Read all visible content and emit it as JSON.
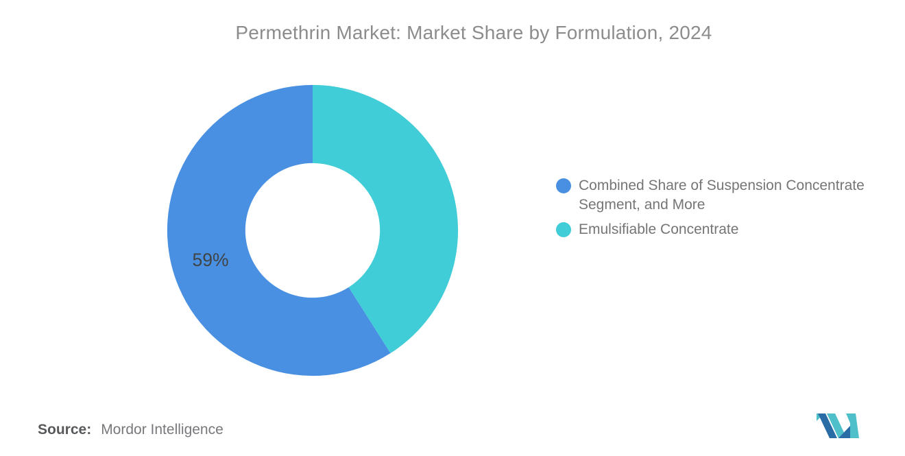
{
  "title": "Permethrin Market: Market Share by Formulation, 2024",
  "chart_data": {
    "type": "pie",
    "subtype": "donut",
    "title": "Permethrin Market: Market Share by Formulation, 2024",
    "unit": "%",
    "start_angle_deg": 0,
    "direction": "counterclockwise-from-top",
    "inner_radius_ratio": 0.465,
    "legend_position": "right",
    "slices": [
      {
        "label": "Combined Share of Suspension Concentrate Segment, and More",
        "value": 59,
        "color": "#4A90E2",
        "data_label": "59%"
      },
      {
        "label": "Emulsifiable Concentrate",
        "value": 41,
        "color": "#41CDD8",
        "data_label": ""
      }
    ]
  },
  "source": {
    "prefix": "Source:",
    "name": "Mordor Intelligence"
  },
  "logo": {
    "alt": "mordor-intelligence-logo",
    "teal": "#4FBFC9",
    "blue": "#2A6CA6"
  },
  "colors": {
    "title_text": "#8C8C8C",
    "legend_text": "#757575",
    "data_label_text": "#3F4446",
    "source_prefix_text": "#58595B",
    "source_name_text": "#77787B",
    "background": "#FFFFFF"
  }
}
